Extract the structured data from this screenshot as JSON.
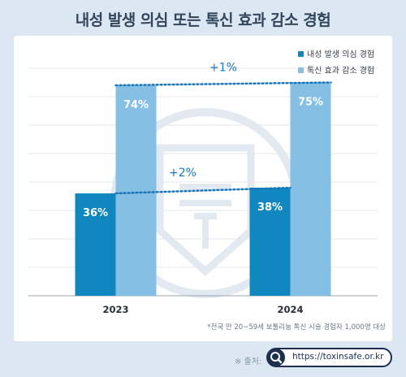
{
  "page": {
    "title": "내성 발생 의심 또는 톡신 효과 감소 경험",
    "footnote": "*전국 만 20~59세 보툴리눔 톡신 시술 경험자 1,000명 대상",
    "source_label": "※ 출처:",
    "source_url": "https://toxinsafe.or.kr",
    "icons": {
      "search": "search-icon",
      "watermark": "shield-syringe-watermark-icon"
    }
  },
  "chart_data": {
    "type": "bar",
    "categories": [
      "2023",
      "2024"
    ],
    "series": [
      {
        "name": "내성 발생 의심 경험",
        "values": [
          36,
          38
        ],
        "color": "#1187c0",
        "labels": [
          "36%",
          "38%"
        ]
      },
      {
        "name": "톡신 효과 감소 경험",
        "values": [
          74,
          75
        ],
        "color": "#86bfe4",
        "labels": [
          "74%",
          "75%"
        ]
      }
    ],
    "ylim": [
      0,
      80
    ],
    "grid": true,
    "legend_position": "top-right",
    "annotations": [
      {
        "text": "+1%",
        "series": 1,
        "from": "2023",
        "to": "2024",
        "color": "#1a76b8"
      },
      {
        "text": "+2%",
        "series": 0,
        "from": "2023",
        "to": "2024",
        "color": "#1a76b8"
      }
    ]
  }
}
